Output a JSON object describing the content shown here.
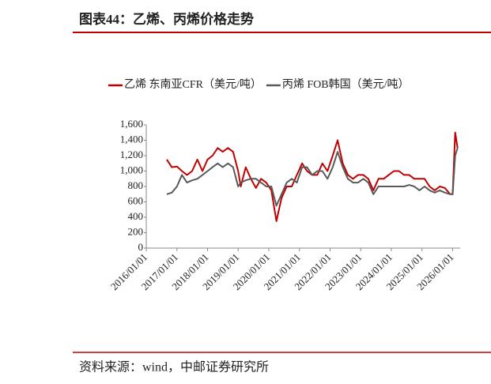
{
  "title": "图表44：乙烯、丙烯价格走势",
  "source": "资料来源：wind，中邮证券研究所",
  "chart_data": {
    "type": "line",
    "x": [
      "2016/09/01",
      "2016/11/01",
      "2017/01/01",
      "2017/03/01",
      "2017/05/01",
      "2017/07/01",
      "2017/09/01",
      "2017/11/01",
      "2018/01/01",
      "2018/03/01",
      "2018/05/01",
      "2018/07/01",
      "2018/09/01",
      "2018/11/01",
      "2019/01/01",
      "2019/02/01",
      "2019/04/01",
      "2019/06/01",
      "2019/08/01",
      "2019/10/01",
      "2019/12/01",
      "2020/02/01",
      "2020/04/01",
      "2020/06/01",
      "2020/08/01",
      "2020/10/01",
      "2020/12/01",
      "2021/02/01",
      "2021/04/01",
      "2021/06/01",
      "2021/08/01",
      "2021/10/01",
      "2021/12/01",
      "2022/02/01",
      "2022/04/01",
      "2022/06/01",
      "2022/08/01",
      "2022/10/01",
      "2022/12/01",
      "2023/02/01",
      "2023/04/01",
      "2023/06/01",
      "2023/08/01",
      "2023/10/01",
      "2023/12/01",
      "2024/02/01",
      "2024/04/01",
      "2024/06/01",
      "2024/08/01",
      "2024/10/01",
      "2024/12/01",
      "2025/02/01",
      "2025/04/01",
      "2025/06/01",
      "2025/08/01",
      "2025/10/01",
      "2025/12/01",
      "2026/01/01",
      "2026/02/01",
      "2026/03/01"
    ],
    "series": [
      {
        "name": "乙烯 东南亚CFR（美元/吨）",
        "color": "#c00000",
        "values": [
          1150,
          1050,
          1060,
          1000,
          950,
          1000,
          1150,
          1000,
          1150,
          1200,
          1300,
          1250,
          1300,
          1250,
          1000,
          800,
          1050,
          900,
          780,
          900,
          850,
          750,
          350,
          650,
          800,
          800,
          950,
          1100,
          1000,
          950,
          950,
          1100,
          1000,
          1200,
          1400,
          1100,
          950,
          900,
          950,
          950,
          900,
          750,
          900,
          900,
          950,
          1000,
          1000,
          950,
          950,
          900,
          900,
          900,
          800,
          750,
          800,
          780,
          700,
          700,
          1500,
          1300
        ]
      },
      {
        "name": "丙烯 FOB韩国（美元/吨）",
        "color": "#595959",
        "values": [
          700,
          720,
          800,
          950,
          850,
          880,
          900,
          950,
          1000,
          1050,
          1100,
          1050,
          1100,
          1050,
          800,
          850,
          880,
          900,
          900,
          850,
          800,
          800,
          550,
          700,
          850,
          900,
          850,
          1050,
          1050,
          950,
          1000,
          1000,
          900,
          1050,
          1250,
          1050,
          900,
          850,
          850,
          900,
          850,
          700,
          800,
          800,
          800,
          800,
          800,
          800,
          820,
          800,
          750,
          800,
          750,
          720,
          750,
          720,
          700,
          700,
          1200,
          1300
        ]
      }
    ],
    "xlim": [
      "2016/01/01",
      "2026/04/01"
    ],
    "xticks": [
      "2016/01/01",
      "2017/01/01",
      "2018/01/01",
      "2019/01/01",
      "2020/01/01",
      "2021/01/01",
      "2022/01/01",
      "2023/01/01",
      "2024/01/01",
      "2025/01/01",
      "2026/01/01"
    ],
    "ylim": [
      0,
      1600
    ],
    "yticks": [
      0,
      200,
      400,
      600,
      800,
      {
        "value": 1000,
        "label": "1,000"
      },
      {
        "value": 1200,
        "label": "1,200"
      },
      {
        "value": 1400,
        "label": "1,400"
      },
      {
        "value": 1600,
        "label": "1,600"
      }
    ]
  }
}
